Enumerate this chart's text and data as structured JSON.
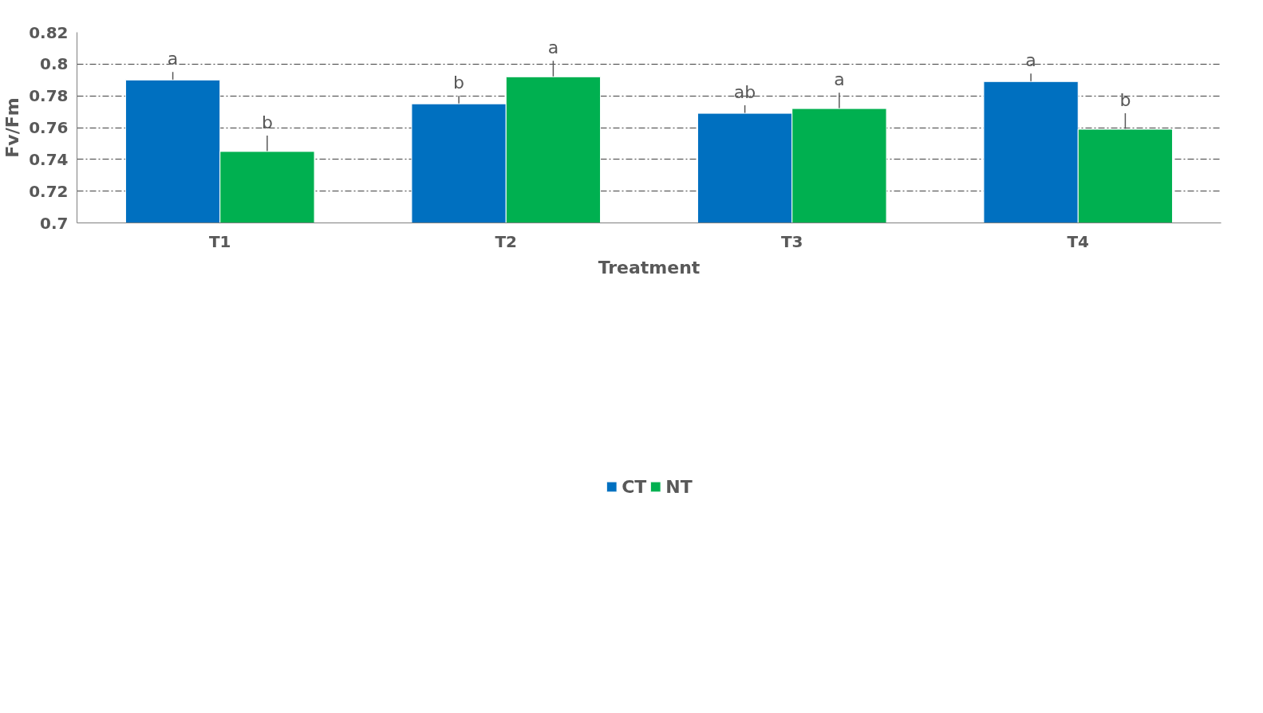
{
  "chart_data": {
    "type": "bar",
    "xlabel": "Treatment",
    "ylabel": "Fv/Fm",
    "categories": [
      "T1",
      "T2",
      "T3",
      "T4"
    ],
    "series": [
      {
        "name": "CT",
        "color": "#0070c0",
        "values": [
          0.79,
          0.775,
          0.769,
          0.789
        ],
        "errors": [
          0.005,
          0.005,
          0.005,
          0.005
        ]
      },
      {
        "name": "NT",
        "color": "#00b050",
        "values": [
          0.745,
          0.792,
          0.772,
          0.759
        ],
        "errors": [
          0.01,
          0.01,
          0.01,
          0.01
        ]
      }
    ],
    "ylim": [
      0.7,
      0.82
    ],
    "yticks": [
      0.7,
      0.72,
      0.74,
      0.76,
      0.78,
      0.8,
      0.82
    ],
    "grid": "y",
    "legend": "bottom",
    "annotations": [
      "a",
      "b",
      "b",
      "a",
      "ab",
      "a",
      "a",
      "b"
    ]
  }
}
